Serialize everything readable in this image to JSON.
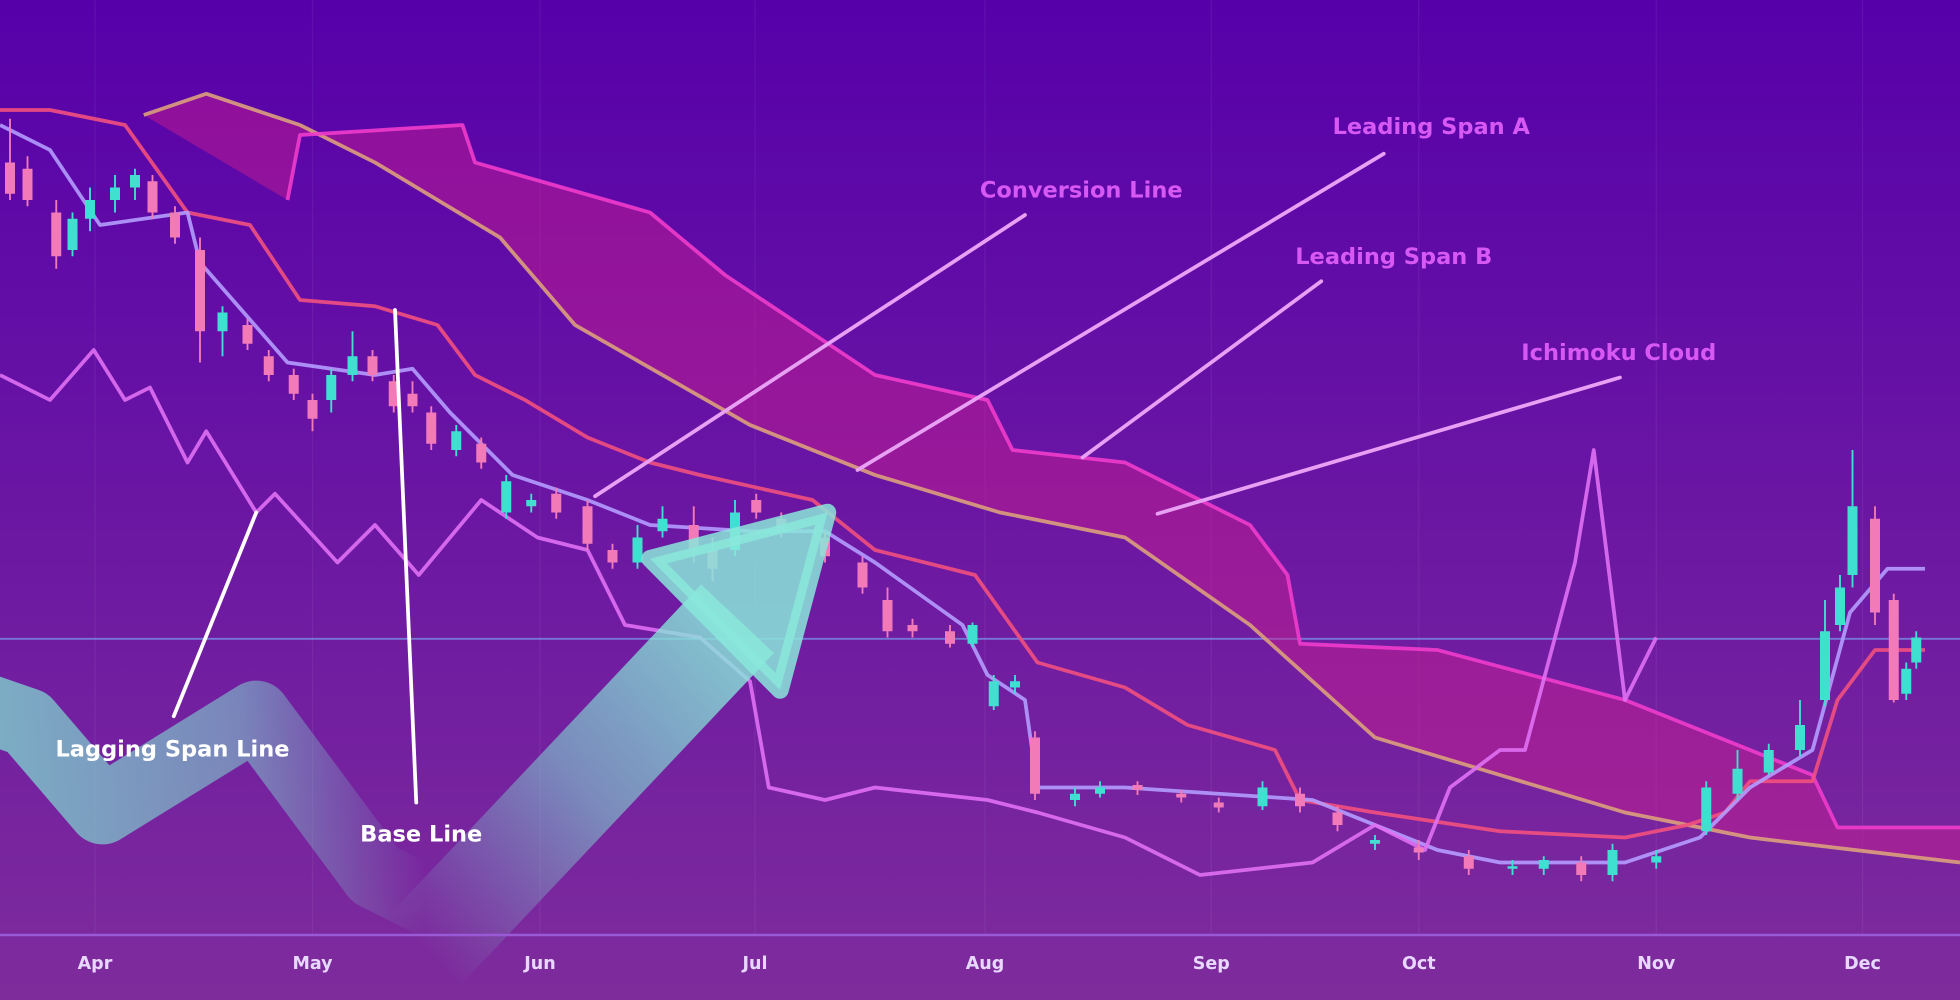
{
  "chart_data": {
    "type": "candlestick",
    "xlim": [
      0,
      1568
    ],
    "ylim": [
      0,
      800
    ],
    "xticks": [
      {
        "value": 76,
        "label": "Apr"
      },
      {
        "value": 250,
        "label": "May"
      },
      {
        "value": 432,
        "label": "Jun"
      },
      {
        "value": 604,
        "label": "Jul"
      },
      {
        "value": 788,
        "label": "Aug"
      },
      {
        "value": 969,
        "label": "Sep"
      },
      {
        "value": 1135,
        "label": "Oct"
      },
      {
        "value": 1325,
        "label": "Nov"
      },
      {
        "value": 1490,
        "label": "Dec"
      }
    ],
    "grid": true,
    "price_line": 289,
    "cloud_label": "Ichimoku Cloud",
    "cloud_color": "#d0208f",
    "up_color": "#3fe0d0",
    "down_color": "#f27ab8",
    "candles": {
      "x": [
        8,
        22,
        45,
        58,
        72,
        92,
        108,
        122,
        140,
        160,
        178,
        198,
        215,
        235,
        250,
        265,
        282,
        298,
        315,
        330,
        345,
        365,
        385,
        405,
        425,
        445,
        470,
        490,
        510,
        530,
        555,
        570,
        588,
        605,
        625,
        660,
        690,
        710,
        730,
        760,
        778,
        795,
        812,
        828,
        860,
        880,
        910,
        945,
        975,
        1010,
        1040,
        1070,
        1100,
        1135,
        1175,
        1210,
        1235,
        1265,
        1290,
        1325,
        1365,
        1390,
        1415,
        1440,
        1460,
        1472,
        1482,
        1500,
        1515,
        1525,
        1533
      ],
      "open": [
        670,
        665,
        630,
        600,
        625,
        640,
        650,
        655,
        630,
        600,
        535,
        540,
        515,
        500,
        480,
        480,
        500,
        515,
        495,
        485,
        470,
        440,
        445,
        390,
        395,
        405,
        395,
        360,
        350,
        375,
        380,
        360,
        360,
        400,
        385,
        370,
        350,
        320,
        300,
        295,
        285,
        235,
        250,
        210,
        160,
        165,
        172,
        165,
        158,
        155,
        165,
        150,
        125,
        122,
        115,
        105,
        105,
        110,
        100,
        110,
        135,
        165,
        182,
        200,
        240,
        300,
        340,
        385,
        320,
        245,
        270
      ],
      "close": [
        645,
        640,
        595,
        625,
        640,
        650,
        660,
        630,
        610,
        535,
        550,
        525,
        500,
        485,
        465,
        500,
        515,
        500,
        475,
        475,
        445,
        455,
        430,
        415,
        400,
        390,
        365,
        350,
        370,
        385,
        360,
        345,
        390,
        390,
        375,
        355,
        330,
        295,
        295,
        285,
        300,
        255,
        255,
        165,
        165,
        170,
        168,
        162,
        154,
        170,
        155,
        140,
        128,
        118,
        105,
        107,
        112,
        100,
        120,
        115,
        170,
        185,
        200,
        220,
        295,
        330,
        395,
        310,
        240,
        265,
        290
      ],
      "high": [
        705,
        675,
        640,
        630,
        650,
        660,
        665,
        660,
        635,
        610,
        555,
        545,
        520,
        505,
        485,
        505,
        535,
        520,
        500,
        495,
        475,
        460,
        450,
        420,
        405,
        410,
        400,
        365,
        380,
        395,
        395,
        370,
        400,
        405,
        390,
        375,
        355,
        330,
        305,
        300,
        302,
        260,
        260,
        215,
        170,
        175,
        175,
        168,
        162,
        175,
        170,
        155,
        132,
        128,
        120,
        112,
        115,
        115,
        125,
        120,
        175,
        200,
        205,
        240,
        320,
        340,
        440,
        395,
        325,
        270,
        295
      ],
      "low": [
        640,
        635,
        585,
        595,
        615,
        630,
        640,
        625,
        605,
        510,
        515,
        520,
        495,
        480,
        455,
        470,
        495,
        495,
        470,
        470,
        440,
        435,
        425,
        385,
        390,
        385,
        360,
        345,
        345,
        370,
        350,
        335,
        355,
        385,
        370,
        350,
        325,
        290,
        290,
        282,
        282,
        232,
        245,
        160,
        155,
        162,
        164,
        158,
        150,
        152,
        150,
        135,
        120,
        112,
        100,
        100,
        100,
        95,
        95,
        105,
        132,
        160,
        180,
        195,
        235,
        295,
        330,
        300,
        238,
        240,
        265
      ]
    },
    "series": [
      {
        "name": "Leading Span A",
        "color": "#dca07c",
        "x": [
          115,
          165,
          240,
          300,
          400,
          460,
          600,
          700,
          800,
          900,
          1000,
          1100,
          1200,
          1300,
          1400,
          1568
        ],
        "values": [
          708,
          725,
          700,
          670,
          610,
          540,
          460,
          420,
          390,
          370,
          300,
          210,
          180,
          150,
          130,
          110
        ]
      },
      {
        "name": "Leading Span B",
        "color": "#f03ccc",
        "x": [
          230,
          240,
          370,
          380,
          520,
          580,
          700,
          790,
          810,
          900,
          1000,
          1030,
          1040,
          1150,
          1300,
          1400,
          1450,
          1470,
          1568
        ],
        "values": [
          640,
          692,
          700,
          670,
          630,
          580,
          500,
          480,
          440,
          430,
          380,
          340,
          285,
          280,
          240,
          200,
          180,
          138,
          138
        ]
      },
      {
        "name": "Base Line",
        "color": "#f2507e",
        "x": [
          0,
          40,
          100,
          150,
          200,
          240,
          300,
          350,
          380,
          420,
          470,
          520,
          560,
          650,
          700,
          780,
          830,
          900,
          950,
          1020,
          1040,
          1100,
          1200,
          1300,
          1350,
          1380,
          1400,
          1450,
          1470,
          1500,
          1540
        ],
        "values": [
          712,
          712,
          700,
          630,
          620,
          560,
          555,
          540,
          500,
          480,
          450,
          430,
          420,
          400,
          360,
          340,
          270,
          250,
          220,
          200,
          160,
          150,
          135,
          130,
          140,
          150,
          175,
          175,
          240,
          280,
          280
        ]
      },
      {
        "name": "Conversion Line",
        "color": "#b49cff",
        "x": [
          0,
          40,
          80,
          150,
          160,
          230,
          300,
          330,
          360,
          410,
          470,
          520,
          600,
          660,
          700,
          770,
          790,
          820,
          830,
          900,
          1050,
          1150,
          1200,
          1300,
          1360,
          1400,
          1450,
          1480,
          1510,
          1540
        ],
        "values": [
          700,
          680,
          620,
          630,
          590,
          510,
          500,
          505,
          470,
          420,
          400,
          380,
          375,
          375,
          350,
          300,
          260,
          240,
          170,
          170,
          160,
          120,
          110,
          110,
          130,
          170,
          200,
          310,
          345,
          345
        ]
      },
      {
        "name": "Lagging Span Line",
        "color": "#e070f4",
        "x": [
          0,
          40,
          75,
          100,
          120,
          150,
          165,
          205,
          220,
          270,
          300,
          335,
          385,
          430,
          470,
          500,
          560,
          600,
          615,
          660,
          700,
          790,
          830,
          900,
          960,
          1050,
          1100,
          1140,
          1160,
          1200,
          1220,
          1260,
          1275,
          1290,
          1300,
          1325
        ],
        "values": [
          500,
          480,
          520,
          480,
          490,
          430,
          455,
          390,
          405,
          350,
          380,
          340,
          400,
          370,
          360,
          300,
          290,
          255,
          170,
          160,
          170,
          160,
          150,
          130,
          100,
          110,
          140,
          120,
          170,
          200,
          200,
          350,
          440,
          320,
          240,
          290
        ]
      }
    ]
  }
}
